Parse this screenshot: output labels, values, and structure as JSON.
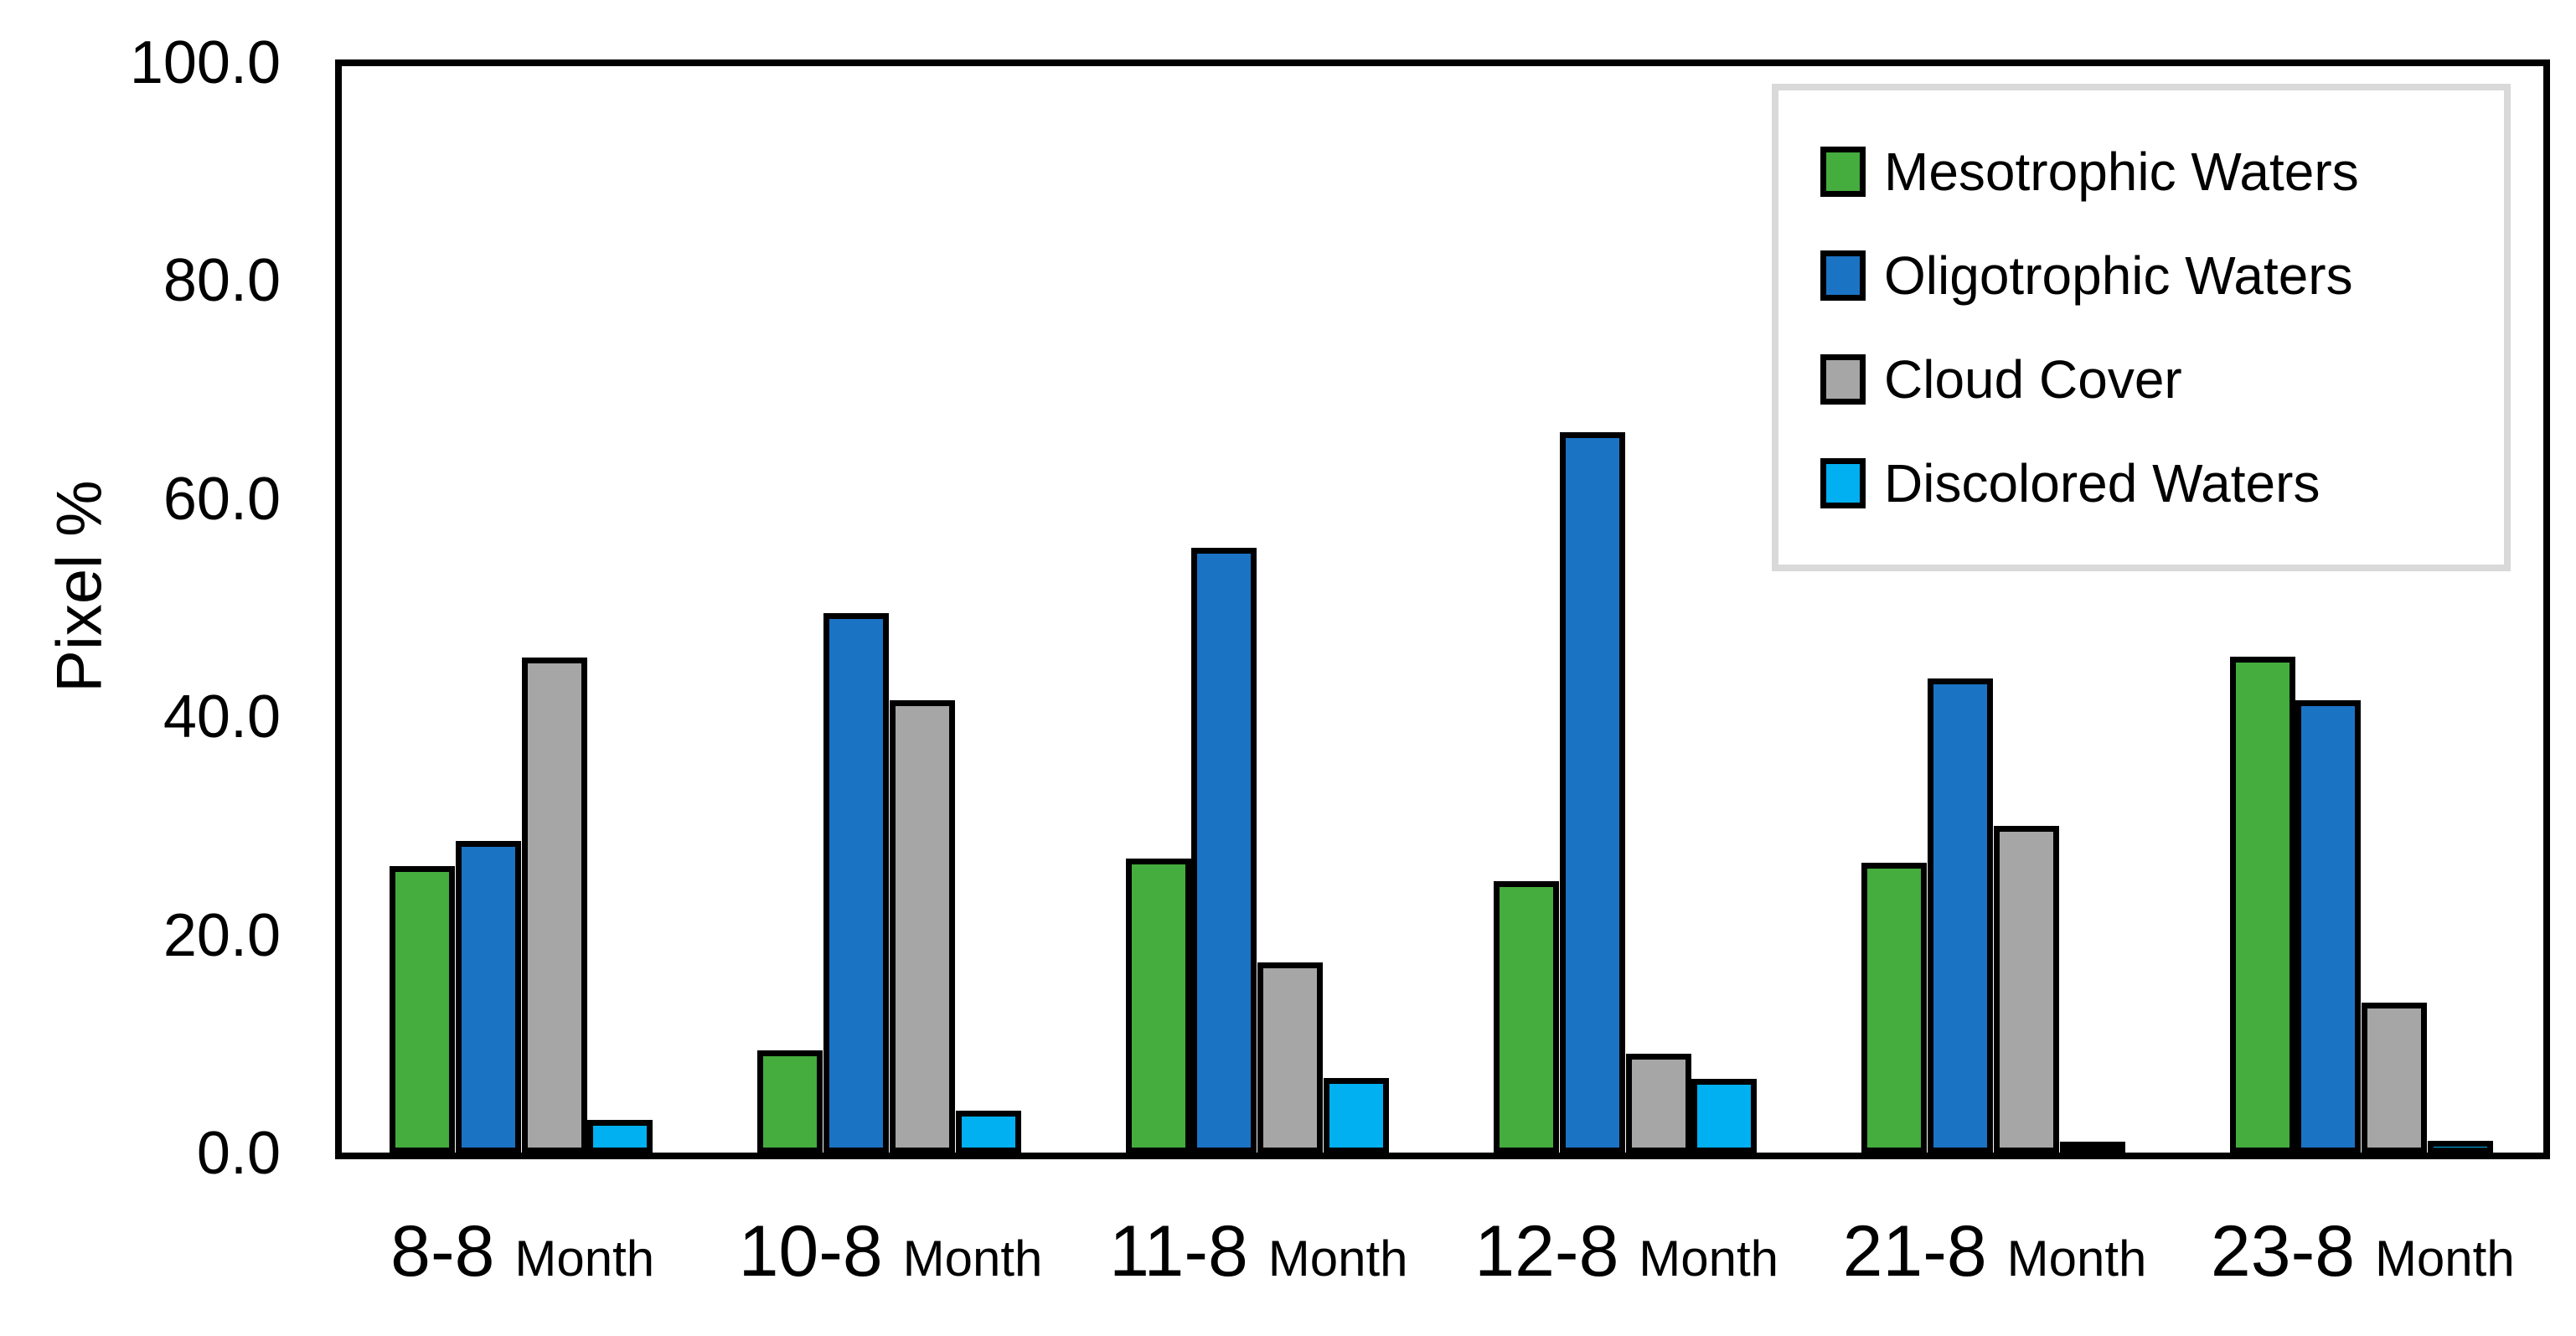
{
  "chart_data": {
    "type": "bar",
    "title": "",
    "xlabel": "",
    "ylabel": "Pixel %",
    "ylim": [
      0,
      100
    ],
    "yticks": [
      0,
      20,
      40,
      60,
      80,
      100
    ],
    "ytick_labels": [
      "0.0",
      "20.0",
      "40.0",
      "60.0",
      "80.0",
      "100.0"
    ],
    "grid": false,
    "legend_position": "inside-top-right",
    "categories": [
      "8-8",
      "10-8",
      "11-8",
      "12-8",
      "21-8",
      "23-8"
    ],
    "category_suffix": "Month",
    "bar_outline_color": "#000000",
    "series": [
      {
        "name": "Mesotrophic Waters",
        "color": "#45AC3E",
        "values": [
          25.8,
          8.9,
          26.5,
          24.4,
          26.1,
          45.0
        ]
      },
      {
        "name": "Oligotrophic Waters",
        "color": "#1B73C4",
        "values": [
          28.1,
          49.0,
          55.0,
          65.6,
          43.0,
          41.0
        ]
      },
      {
        "name": "Cloud Cover",
        "color": "#A6A6A6",
        "values": [
          44.9,
          41.0,
          17.0,
          8.6,
          29.5,
          13.3
        ]
      },
      {
        "name": "Discolored Waters",
        "color": "#00B0F0",
        "values": [
          2.5,
          3.4,
          6.4,
          6.3,
          0.2,
          0.6
        ]
      }
    ]
  },
  "colors": {
    "axis": "#000000",
    "legend_border": "#D9D9D9",
    "background": "#FFFFFF"
  }
}
